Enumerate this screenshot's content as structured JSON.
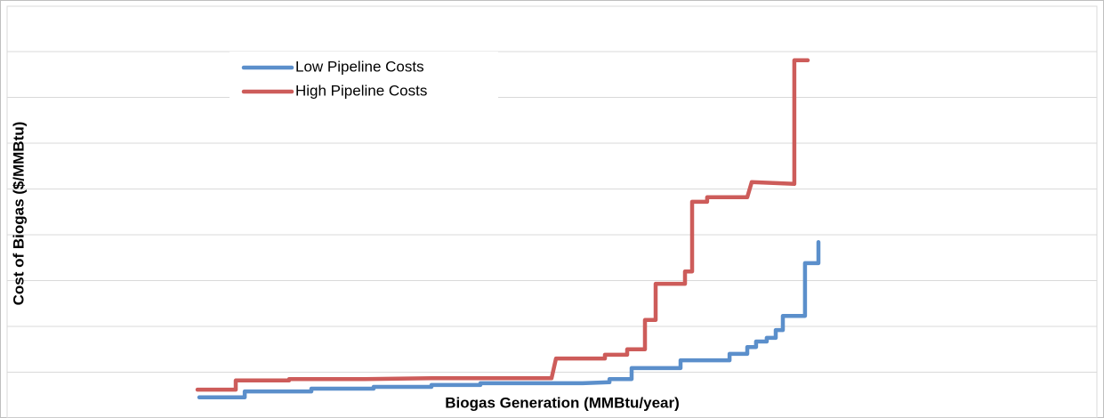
{
  "chart_data": {
    "type": "line",
    "xlabel": "Biogas Generation (MMBtu/year)",
    "ylabel": "Cost of Biogas ($/MMBtu)",
    "xlim": [
      0,
      100
    ],
    "ylim": [
      0,
      9
    ],
    "yticks": [
      1,
      2,
      3,
      4,
      5,
      6,
      7,
      8
    ],
    "grid": true,
    "legend": "top-left",
    "series": [
      {
        "name": "Low Pipeline Costs",
        "color": "#5b8fcb",
        "x": [
          17.63,
          21.8,
          21.8,
          27.92,
          27.92,
          33.63,
          33.63,
          38.94,
          38.94,
          43.43,
          43.43,
          52.82,
          55.27,
          55.27,
          57.31,
          57.31,
          61.8,
          61.8,
          66.29,
          66.29,
          67.92,
          67.92,
          68.73,
          68.73,
          69.71,
          69.71,
          70.53,
          70.53,
          71.18,
          71.18,
          73.22,
          73.22,
          74.45,
          74.45
        ],
        "values": [
          0.45,
          0.45,
          0.58,
          0.58,
          0.64,
          0.64,
          0.68,
          0.68,
          0.72,
          0.72,
          0.76,
          0.76,
          0.78,
          0.85,
          0.85,
          1.09,
          1.09,
          1.26,
          1.26,
          1.4,
          1.4,
          1.55,
          1.55,
          1.67,
          1.67,
          1.75,
          1.75,
          1.92,
          1.92,
          2.23,
          2.23,
          3.38,
          3.38,
          3.84
        ]
      },
      {
        "name": "High Pipeline Costs",
        "color": "#cd5c5a",
        "x": [
          17.47,
          20.98,
          20.98,
          25.88,
          25.88,
          32.82,
          38.94,
          49.96,
          50.37,
          54.86,
          54.86,
          56.9,
          56.9,
          58.53,
          58.53,
          59.51,
          59.51,
          62.2,
          62.2,
          62.86,
          62.86,
          64.24,
          64.24,
          67.92,
          68.33,
          72.24,
          72.24,
          73.47
        ],
        "values": [
          0.62,
          0.62,
          0.82,
          0.82,
          0.85,
          0.85,
          0.87,
          0.87,
          1.3,
          1.3,
          1.38,
          1.38,
          1.5,
          1.5,
          2.14,
          2.14,
          2.93,
          2.93,
          3.2,
          3.2,
          4.72,
          4.72,
          4.82,
          4.82,
          5.15,
          5.11,
          7.81,
          7.81
        ]
      }
    ]
  }
}
